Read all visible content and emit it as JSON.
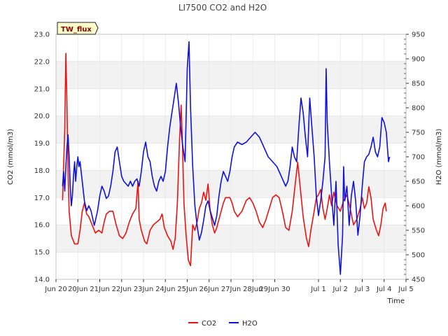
{
  "chart_data": {
    "type": "line",
    "title": "LI7500 CO2 and H2O",
    "site_label": "TW_flux",
    "xlabel": "Time",
    "ylabel_left": "CO2 (mmol/m3)",
    "ylabel_right": "H2O (mmol/m3)",
    "x_unit": "days since Jun 20",
    "xlim": [
      -1,
      15
    ],
    "ylim_left": [
      14.0,
      23.0
    ],
    "ylim_right": [
      450,
      950
    ],
    "x_ticks": [
      {
        "x": -1,
        "label": "Jun 20"
      },
      {
        "x": 0,
        "label": "20Jun"
      },
      {
        "x": 1,
        "label": "21Jun"
      },
      {
        "x": 2,
        "label": "22Jun"
      },
      {
        "x": 3,
        "label": "23Jun"
      },
      {
        "x": 4,
        "label": "24Jun"
      },
      {
        "x": 5,
        "label": "25Jun"
      },
      {
        "x": 6,
        "label": "26Jun"
      },
      {
        "x": 7,
        "label": "27Jun"
      },
      {
        "x": 8,
        "label": "28Jun"
      },
      {
        "x": 9,
        "label": "29Jun 30"
      },
      {
        "x": 11,
        "label": "Jul 1"
      },
      {
        "x": 12,
        "label": "Jul 2"
      },
      {
        "x": 13,
        "label": "Jul 3"
      },
      {
        "x": 14,
        "label": "Jul 4"
      },
      {
        "x": 15,
        "label": "Jul 5"
      }
    ],
    "y_ticks_left": [
      "14.0",
      "15.0",
      "16.0",
      "17.0",
      "18.0",
      "19.0",
      "20.0",
      "21.0",
      "22.0",
      "23.0"
    ],
    "y_ticks_right": [
      "450",
      "500",
      "550",
      "600",
      "650",
      "700",
      "750",
      "800",
      "850",
      "900",
      "950"
    ],
    "series": [
      {
        "name": "CO2",
        "axis": "left",
        "color": "#ee1111",
        "points": [
          [
            -0.7,
            16.9
          ],
          [
            -0.6,
            19.5
          ],
          [
            -0.55,
            22.3
          ],
          [
            -0.5,
            20.5
          ],
          [
            -0.45,
            18.0
          ],
          [
            -0.4,
            16.5
          ],
          [
            -0.3,
            15.6
          ],
          [
            -0.15,
            15.3
          ],
          [
            0.0,
            15.3
          ],
          [
            0.1,
            15.8
          ],
          [
            0.2,
            16.5
          ],
          [
            0.3,
            16.8
          ],
          [
            0.4,
            16.4
          ],
          [
            0.5,
            16.3
          ],
          [
            0.65,
            16.0
          ],
          [
            0.8,
            15.7
          ],
          [
            0.95,
            15.8
          ],
          [
            1.1,
            15.7
          ],
          [
            1.2,
            16.1
          ],
          [
            1.3,
            16.4
          ],
          [
            1.45,
            16.5
          ],
          [
            1.6,
            16.5
          ],
          [
            1.75,
            16.0
          ],
          [
            1.9,
            15.6
          ],
          [
            2.05,
            15.5
          ],
          [
            2.2,
            15.7
          ],
          [
            2.35,
            16.1
          ],
          [
            2.5,
            16.4
          ],
          [
            2.65,
            16.6
          ],
          [
            2.75,
            17.6
          ],
          [
            2.8,
            16.2
          ],
          [
            2.9,
            15.8
          ],
          [
            3.05,
            15.4
          ],
          [
            3.15,
            15.3
          ],
          [
            3.3,
            15.8
          ],
          [
            3.45,
            16.0
          ],
          [
            3.6,
            16.1
          ],
          [
            3.75,
            16.2
          ],
          [
            3.85,
            16.4
          ],
          [
            3.95,
            15.9
          ],
          [
            4.1,
            15.6
          ],
          [
            4.25,
            15.4
          ],
          [
            4.35,
            15.1
          ],
          [
            4.45,
            15.5
          ],
          [
            4.55,
            16.8
          ],
          [
            4.65,
            19.2
          ],
          [
            4.72,
            20.4
          ],
          [
            4.78,
            19.0
          ],
          [
            4.85,
            16.8
          ],
          [
            4.95,
            15.6
          ],
          [
            5.05,
            14.7
          ],
          [
            5.15,
            14.5
          ],
          [
            5.25,
            16.0
          ],
          [
            5.35,
            15.8
          ],
          [
            5.45,
            16.1
          ],
          [
            5.55,
            16.6
          ],
          [
            5.65,
            16.8
          ],
          [
            5.75,
            17.2
          ],
          [
            5.85,
            16.9
          ],
          [
            5.95,
            17.5
          ],
          [
            6.05,
            16.5
          ],
          [
            6.15,
            16.0
          ],
          [
            6.25,
            15.7
          ],
          [
            6.35,
            15.9
          ],
          [
            6.45,
            16.2
          ],
          [
            6.55,
            16.5
          ],
          [
            6.65,
            16.8
          ],
          [
            6.75,
            17.0
          ],
          [
            6.85,
            17.0
          ],
          [
            6.95,
            17.0
          ],
          [
            7.05,
            16.8
          ],
          [
            7.15,
            16.5
          ],
          [
            7.3,
            16.3
          ],
          [
            7.5,
            16.5
          ],
          [
            7.7,
            16.9
          ],
          [
            7.85,
            17.0
          ],
          [
            8.0,
            16.8
          ],
          [
            8.15,
            16.5
          ],
          [
            8.3,
            16.1
          ],
          [
            8.45,
            15.9
          ],
          [
            8.6,
            16.2
          ],
          [
            8.75,
            16.6
          ],
          [
            8.9,
            17.0
          ],
          [
            9.05,
            17.1
          ],
          [
            9.2,
            17.0
          ],
          [
            9.35,
            16.5
          ],
          [
            9.5,
            15.9
          ],
          [
            9.65,
            15.8
          ],
          [
            9.8,
            16.5
          ],
          [
            9.95,
            17.6
          ],
          [
            10.05,
            18.3
          ],
          [
            10.15,
            17.5
          ],
          [
            10.3,
            16.3
          ],
          [
            10.45,
            15.5
          ],
          [
            10.55,
            15.2
          ],
          [
            10.65,
            15.8
          ],
          [
            10.8,
            16.5
          ],
          [
            10.9,
            17.0
          ],
          [
            11.0,
            17.1
          ],
          [
            11.1,
            17.3
          ],
          [
            11.2,
            16.6
          ],
          [
            11.3,
            16.2
          ],
          [
            11.4,
            16.6
          ],
          [
            11.5,
            17.1
          ],
          [
            11.6,
            16.7
          ],
          [
            11.7,
            17.2
          ],
          [
            11.85,
            16.7
          ],
          [
            12.0,
            16.5
          ],
          [
            12.15,
            16.9
          ],
          [
            12.3,
            17.1
          ],
          [
            12.45,
            16.6
          ],
          [
            12.6,
            16.0
          ],
          [
            12.75,
            16.2
          ],
          [
            12.9,
            16.6
          ],
          [
            13.0,
            17.0
          ],
          [
            13.1,
            16.6
          ],
          [
            13.2,
            16.8
          ],
          [
            13.3,
            17.4
          ],
          [
            13.4,
            17.0
          ],
          [
            13.5,
            16.2
          ],
          [
            13.65,
            15.8
          ],
          [
            13.75,
            15.6
          ],
          [
            13.85,
            16.0
          ],
          [
            13.95,
            16.6
          ],
          [
            14.05,
            16.8
          ],
          [
            14.1,
            16.5
          ]
        ]
      },
      {
        "name": "H2O",
        "axis": "right",
        "color": "#1111dd",
        "points": [
          [
            -0.7,
            640
          ],
          [
            -0.65,
            670
          ],
          [
            -0.6,
            630
          ],
          [
            -0.55,
            680
          ],
          [
            -0.5,
            720
          ],
          [
            -0.45,
            745
          ],
          [
            -0.4,
            700
          ],
          [
            -0.35,
            640
          ],
          [
            -0.3,
            600
          ],
          [
            -0.25,
            620
          ],
          [
            -0.2,
            660
          ],
          [
            -0.15,
            690
          ],
          [
            -0.1,
            650
          ],
          [
            -0.05,
            680
          ],
          [
            0.0,
            700
          ],
          [
            0.05,
            680
          ],
          [
            0.1,
            690
          ],
          [
            0.15,
            670
          ],
          [
            0.2,
            650
          ],
          [
            0.3,
            610
          ],
          [
            0.4,
            590
          ],
          [
            0.5,
            600
          ],
          [
            0.6,
            590
          ],
          [
            0.7,
            570
          ],
          [
            0.75,
            560
          ],
          [
            0.8,
            570
          ],
          [
            0.9,
            590
          ],
          [
            1.0,
            620
          ],
          [
            1.1,
            640
          ],
          [
            1.2,
            630
          ],
          [
            1.3,
            615
          ],
          [
            1.4,
            620
          ],
          [
            1.5,
            640
          ],
          [
            1.6,
            670
          ],
          [
            1.7,
            710
          ],
          [
            1.8,
            720
          ],
          [
            1.9,
            690
          ],
          [
            2.0,
            660
          ],
          [
            2.1,
            650
          ],
          [
            2.2,
            645
          ],
          [
            2.3,
            640
          ],
          [
            2.4,
            650
          ],
          [
            2.5,
            640
          ],
          [
            2.6,
            650
          ],
          [
            2.7,
            655
          ],
          [
            2.8,
            640
          ],
          [
            2.9,
            670
          ],
          [
            3.0,
            710
          ],
          [
            3.1,
            730
          ],
          [
            3.2,
            700
          ],
          [
            3.3,
            690
          ],
          [
            3.4,
            660
          ],
          [
            3.5,
            640
          ],
          [
            3.6,
            630
          ],
          [
            3.7,
            650
          ],
          [
            3.8,
            660
          ],
          [
            3.9,
            650
          ],
          [
            4.0,
            670
          ],
          [
            4.1,
            720
          ],
          [
            4.2,
            760
          ],
          [
            4.3,
            790
          ],
          [
            4.4,
            820
          ],
          [
            4.5,
            850
          ],
          [
            4.6,
            810
          ],
          [
            4.7,
            760
          ],
          [
            4.8,
            720
          ],
          [
            4.9,
            690
          ],
          [
            5.0,
            880
          ],
          [
            5.08,
            935
          ],
          [
            5.15,
            800
          ],
          [
            5.25,
            680
          ],
          [
            5.35,
            600
          ],
          [
            5.45,
            560
          ],
          [
            5.55,
            530
          ],
          [
            5.65,
            545
          ],
          [
            5.75,
            570
          ],
          [
            5.85,
            600
          ],
          [
            5.95,
            610
          ],
          [
            6.05,
            590
          ],
          [
            6.15,
            575
          ],
          [
            6.25,
            560
          ],
          [
            6.35,
            580
          ],
          [
            6.45,
            620
          ],
          [
            6.55,
            650
          ],
          [
            6.65,
            670
          ],
          [
            6.75,
            660
          ],
          [
            6.85,
            650
          ],
          [
            6.95,
            670
          ],
          [
            7.05,
            700
          ],
          [
            7.15,
            720
          ],
          [
            7.3,
            730
          ],
          [
            7.5,
            725
          ],
          [
            7.7,
            730
          ],
          [
            7.9,
            740
          ],
          [
            8.1,
            750
          ],
          [
            8.3,
            740
          ],
          [
            8.5,
            720
          ],
          [
            8.7,
            700
          ],
          [
            8.9,
            690
          ],
          [
            9.1,
            680
          ],
          [
            9.3,
            660
          ],
          [
            9.5,
            640
          ],
          [
            9.6,
            650
          ],
          [
            9.7,
            680
          ],
          [
            9.8,
            720
          ],
          [
            9.9,
            700
          ],
          [
            10.0,
            690
          ],
          [
            10.1,
            760
          ],
          [
            10.2,
            820
          ],
          [
            10.3,
            790
          ],
          [
            10.4,
            740
          ],
          [
            10.5,
            700
          ],
          [
            10.6,
            820
          ],
          [
            10.7,
            760
          ],
          [
            10.8,
            700
          ],
          [
            10.9,
            620
          ],
          [
            11.0,
            580
          ],
          [
            11.1,
            610
          ],
          [
            11.2,
            650
          ],
          [
            11.3,
            700
          ],
          [
            11.35,
            880
          ],
          [
            11.4,
            770
          ],
          [
            11.5,
            690
          ],
          [
            11.6,
            620
          ],
          [
            11.7,
            560
          ],
          [
            11.8,
            650
          ],
          [
            11.9,
            520
          ],
          [
            12.0,
            460
          ],
          [
            12.1,
            540
          ],
          [
            12.15,
            680
          ],
          [
            12.2,
            610
          ],
          [
            12.3,
            640
          ],
          [
            12.4,
            560
          ],
          [
            12.5,
            620
          ],
          [
            12.6,
            650
          ],
          [
            12.7,
            610
          ],
          [
            12.8,
            540
          ],
          [
            12.9,
            580
          ],
          [
            13.0,
            640
          ],
          [
            13.1,
            690
          ],
          [
            13.2,
            700
          ],
          [
            13.3,
            705
          ],
          [
            13.4,
            720
          ],
          [
            13.5,
            740
          ],
          [
            13.6,
            710
          ],
          [
            13.7,
            700
          ],
          [
            13.8,
            720
          ],
          [
            13.9,
            780
          ],
          [
            14.0,
            770
          ],
          [
            14.1,
            750
          ],
          [
            14.15,
            720
          ],
          [
            14.2,
            690
          ],
          [
            14.25,
            700
          ]
        ]
      }
    ],
    "legend": {
      "position": "bottom-center",
      "entries": [
        "CO2",
        "H2O"
      ]
    },
    "grid": true,
    "band_shading": "alternating horizontal bands"
  }
}
